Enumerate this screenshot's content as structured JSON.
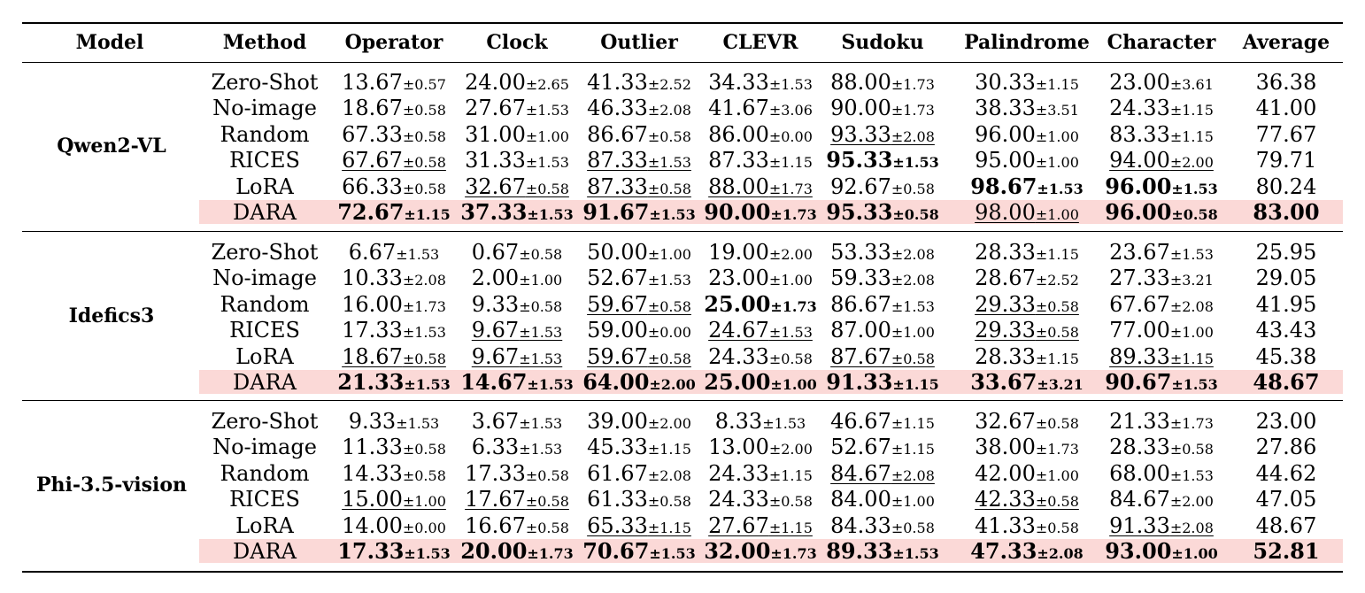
{
  "headers": [
    "Model",
    "Method",
    "Operator",
    "Clock",
    "Outlier",
    "CLEVR",
    "Sudoku",
    "Palindrome",
    "Character",
    "Average"
  ],
  "groups": [
    {
      "model": "Qwen2-VL",
      "rows": [
        {
          "method": "Zero-Shot",
          "cells": [
            {
              "m": "13.67",
              "s": "±0.57"
            },
            {
              "m": "24.00",
              "s": "±2.65"
            },
            {
              "m": "41.33",
              "s": "±2.52"
            },
            {
              "m": "34.33",
              "s": "±1.53"
            },
            {
              "m": "88.00",
              "s": "±1.73"
            },
            {
              "m": "30.33",
              "s": "±1.15"
            },
            {
              "m": "23.00",
              "s": "±3.61"
            }
          ],
          "avg": "36.38"
        },
        {
          "method": "No-image",
          "cells": [
            {
              "m": "18.67",
              "s": "±0.58"
            },
            {
              "m": "27.67",
              "s": "±1.53"
            },
            {
              "m": "46.33",
              "s": "±2.08"
            },
            {
              "m": "41.67",
              "s": "±3.06"
            },
            {
              "m": "90.00",
              "s": "±1.73"
            },
            {
              "m": "38.33",
              "s": "±3.51"
            },
            {
              "m": "24.33",
              "s": "±1.15"
            }
          ],
          "avg": "41.00"
        },
        {
          "method": "Random",
          "cells": [
            {
              "m": "67.33",
              "s": "±0.58"
            },
            {
              "m": "31.00",
              "s": "±1.00"
            },
            {
              "m": "86.67",
              "s": "±0.58"
            },
            {
              "m": "86.00",
              "s": "±0.00"
            },
            {
              "m": "93.33",
              "s": "±2.08",
              "u": true
            },
            {
              "m": "96.00",
              "s": "±1.00"
            },
            {
              "m": "83.33",
              "s": "±1.15"
            }
          ],
          "avg": "77.67"
        },
        {
          "method": "RICES",
          "cells": [
            {
              "m": "67.67",
              "s": "±0.58",
              "u": true
            },
            {
              "m": "31.33",
              "s": "±1.53"
            },
            {
              "m": "87.33",
              "s": "±1.53",
              "u": true
            },
            {
              "m": "87.33",
              "s": "±1.15"
            },
            {
              "m": "95.33",
              "s": "±1.53",
              "b": true
            },
            {
              "m": "95.00",
              "s": "±1.00"
            },
            {
              "m": "94.00",
              "s": "±2.00",
              "u": true
            }
          ],
          "avg": "79.71"
        },
        {
          "method": "LoRA",
          "cells": [
            {
              "m": "66.33",
              "s": "±0.58"
            },
            {
              "m": "32.67",
              "s": "±0.58",
              "u": true
            },
            {
              "m": "87.33",
              "s": "±0.58",
              "u": true
            },
            {
              "m": "88.00",
              "s": "±1.73",
              "u": true
            },
            {
              "m": "92.67",
              "s": "±0.58"
            },
            {
              "m": "98.67",
              "s": "±1.53",
              "b": true
            },
            {
              "m": "96.00",
              "s": "±1.53",
              "b": true
            }
          ],
          "avg": "80.24"
        },
        {
          "method": "DARA",
          "highlight": true,
          "cells": [
            {
              "m": "72.67",
              "s": "±1.15",
              "b": true
            },
            {
              "m": "37.33",
              "s": "±1.53",
              "b": true
            },
            {
              "m": "91.67",
              "s": "±1.53",
              "b": true
            },
            {
              "m": "90.00",
              "s": "±1.73",
              "b": true
            },
            {
              "m": "95.33",
              "s": "±0.58",
              "b": true
            },
            {
              "m": "98.00",
              "s": "±1.00",
              "u": true
            },
            {
              "m": "96.00",
              "s": "±0.58",
              "b": true
            }
          ],
          "avg": "83.00",
          "avg_bold": true
        }
      ]
    },
    {
      "model": "Idefics3",
      "rows": [
        {
          "method": "Zero-Shot",
          "cells": [
            {
              "m": "6.67",
              "s": "±1.53"
            },
            {
              "m": "0.67",
              "s": "±0.58"
            },
            {
              "m": "50.00",
              "s": "±1.00"
            },
            {
              "m": "19.00",
              "s": "±2.00"
            },
            {
              "m": "53.33",
              "s": "±2.08"
            },
            {
              "m": "28.33",
              "s": "±1.15"
            },
            {
              "m": "23.67",
              "s": "±1.53"
            }
          ],
          "avg": "25.95"
        },
        {
          "method": "No-image",
          "cells": [
            {
              "m": "10.33",
              "s": "±2.08"
            },
            {
              "m": "2.00",
              "s": "±1.00"
            },
            {
              "m": "52.67",
              "s": "±1.53"
            },
            {
              "m": "23.00",
              "s": "±1.00"
            },
            {
              "m": "59.33",
              "s": "±2.08"
            },
            {
              "m": "28.67",
              "s": "±2.52"
            },
            {
              "m": "27.33",
              "s": "±3.21"
            }
          ],
          "avg": "29.05"
        },
        {
          "method": "Random",
          "cells": [
            {
              "m": "16.00",
              "s": "±1.73"
            },
            {
              "m": "9.33",
              "s": "±0.58"
            },
            {
              "m": "59.67",
              "s": "±0.58",
              "u": true
            },
            {
              "m": "25.00",
              "s": "±1.73",
              "b": true
            },
            {
              "m": "86.67",
              "s": "±1.53"
            },
            {
              "m": "29.33",
              "s": "±0.58",
              "u": true
            },
            {
              "m": "67.67",
              "s": "±2.08"
            }
          ],
          "avg": "41.95"
        },
        {
          "method": "RICES",
          "cells": [
            {
              "m": "17.33",
              "s": "±1.53"
            },
            {
              "m": "9.67",
              "s": "±1.53",
              "u": true
            },
            {
              "m": "59.00",
              "s": "±0.00"
            },
            {
              "m": "24.67",
              "s": "±1.53",
              "u": true
            },
            {
              "m": "87.00",
              "s": "±1.00"
            },
            {
              "m": "29.33",
              "s": "±0.58",
              "u": true
            },
            {
              "m": "77.00",
              "s": "±1.00"
            }
          ],
          "avg": "43.43"
        },
        {
          "method": "LoRA",
          "cells": [
            {
              "m": "18.67",
              "s": "±0.58",
              "u": true
            },
            {
              "m": "9.67",
              "s": "±1.53",
              "u": true
            },
            {
              "m": "59.67",
              "s": "±0.58",
              "u": true
            },
            {
              "m": "24.33",
              "s": "±0.58"
            },
            {
              "m": "87.67",
              "s": "±0.58",
              "u": true
            },
            {
              "m": "28.33",
              "s": "±1.15"
            },
            {
              "m": "89.33",
              "s": "±1.15",
              "u": true
            }
          ],
          "avg": "45.38"
        },
        {
          "method": "DARA",
          "highlight": true,
          "cells": [
            {
              "m": "21.33",
              "s": "±1.53",
              "b": true
            },
            {
              "m": "14.67",
              "s": "±1.53",
              "b": true
            },
            {
              "m": "64.00",
              "s": "±2.00",
              "b": true
            },
            {
              "m": "25.00",
              "s": "±1.00",
              "b": true
            },
            {
              "m": "91.33",
              "s": "±1.15",
              "b": true
            },
            {
              "m": "33.67",
              "s": "±3.21",
              "b": true
            },
            {
              "m": "90.67",
              "s": "±1.53",
              "b": true
            }
          ],
          "avg": "48.67",
          "avg_bold": true
        }
      ]
    },
    {
      "model": "Phi-3.5-vision",
      "rows": [
        {
          "method": "Zero-Shot",
          "cells": [
            {
              "m": "9.33",
              "s": "±1.53"
            },
            {
              "m": "3.67",
              "s": "±1.53"
            },
            {
              "m": "39.00",
              "s": "±2.00"
            },
            {
              "m": "8.33",
              "s": "±1.53"
            },
            {
              "m": "46.67",
              "s": "±1.15"
            },
            {
              "m": "32.67",
              "s": "±0.58"
            },
            {
              "m": "21.33",
              "s": "±1.73"
            }
          ],
          "avg": "23.00"
        },
        {
          "method": "No-image",
          "cells": [
            {
              "m": "11.33",
              "s": "±0.58"
            },
            {
              "m": "6.33",
              "s": "±1.53"
            },
            {
              "m": "45.33",
              "s": "±1.15"
            },
            {
              "m": "13.00",
              "s": "±2.00"
            },
            {
              "m": "52.67",
              "s": "±1.15"
            },
            {
              "m": "38.00",
              "s": "±1.73"
            },
            {
              "m": "28.33",
              "s": "±0.58"
            }
          ],
          "avg": "27.86"
        },
        {
          "method": "Random",
          "cells": [
            {
              "m": "14.33",
              "s": "±0.58"
            },
            {
              "m": "17.33",
              "s": "±0.58"
            },
            {
              "m": "61.67",
              "s": "±2.08"
            },
            {
              "m": "24.33",
              "s": "±1.15"
            },
            {
              "m": "84.67",
              "s": "±2.08",
              "u": true
            },
            {
              "m": "42.00",
              "s": "±1.00"
            },
            {
              "m": "68.00",
              "s": "±1.53"
            }
          ],
          "avg": "44.62"
        },
        {
          "method": "RICES",
          "cells": [
            {
              "m": "15.00",
              "s": "±1.00",
              "u": true
            },
            {
              "m": "17.67",
              "s": "±0.58",
              "u": true
            },
            {
              "m": "61.33",
              "s": "±0.58"
            },
            {
              "m": "24.33",
              "s": "±0.58"
            },
            {
              "m": "84.00",
              "s": "±1.00"
            },
            {
              "m": "42.33",
              "s": "±0.58",
              "u": true
            },
            {
              "m": "84.67",
              "s": "±2.00"
            }
          ],
          "avg": "47.05"
        },
        {
          "method": "LoRA",
          "cells": [
            {
              "m": "14.00",
              "s": "±0.00"
            },
            {
              "m": "16.67",
              "s": "±0.58"
            },
            {
              "m": "65.33",
              "s": "±1.15",
              "u": true
            },
            {
              "m": "27.67",
              "s": "±1.15",
              "u": true
            },
            {
              "m": "84.33",
              "s": "±0.58"
            },
            {
              "m": "41.33",
              "s": "±0.58"
            },
            {
              "m": "91.33",
              "s": "±2.08",
              "u": true
            }
          ],
          "avg": "48.67"
        },
        {
          "method": "DARA",
          "highlight": true,
          "cells": [
            {
              "m": "17.33",
              "s": "±1.53",
              "b": true
            },
            {
              "m": "20.00",
              "s": "±1.73",
              "b": true
            },
            {
              "m": "70.67",
              "s": "±1.53",
              "b": true
            },
            {
              "m": "32.00",
              "s": "±1.73",
              "b": true
            },
            {
              "m": "89.33",
              "s": "±1.53",
              "b": true
            },
            {
              "m": "47.33",
              "s": "±2.08",
              "b": true
            },
            {
              "m": "93.00",
              "s": "±1.00",
              "b": true
            }
          ],
          "avg": "52.81",
          "avg_bold": true
        }
      ]
    }
  ]
}
